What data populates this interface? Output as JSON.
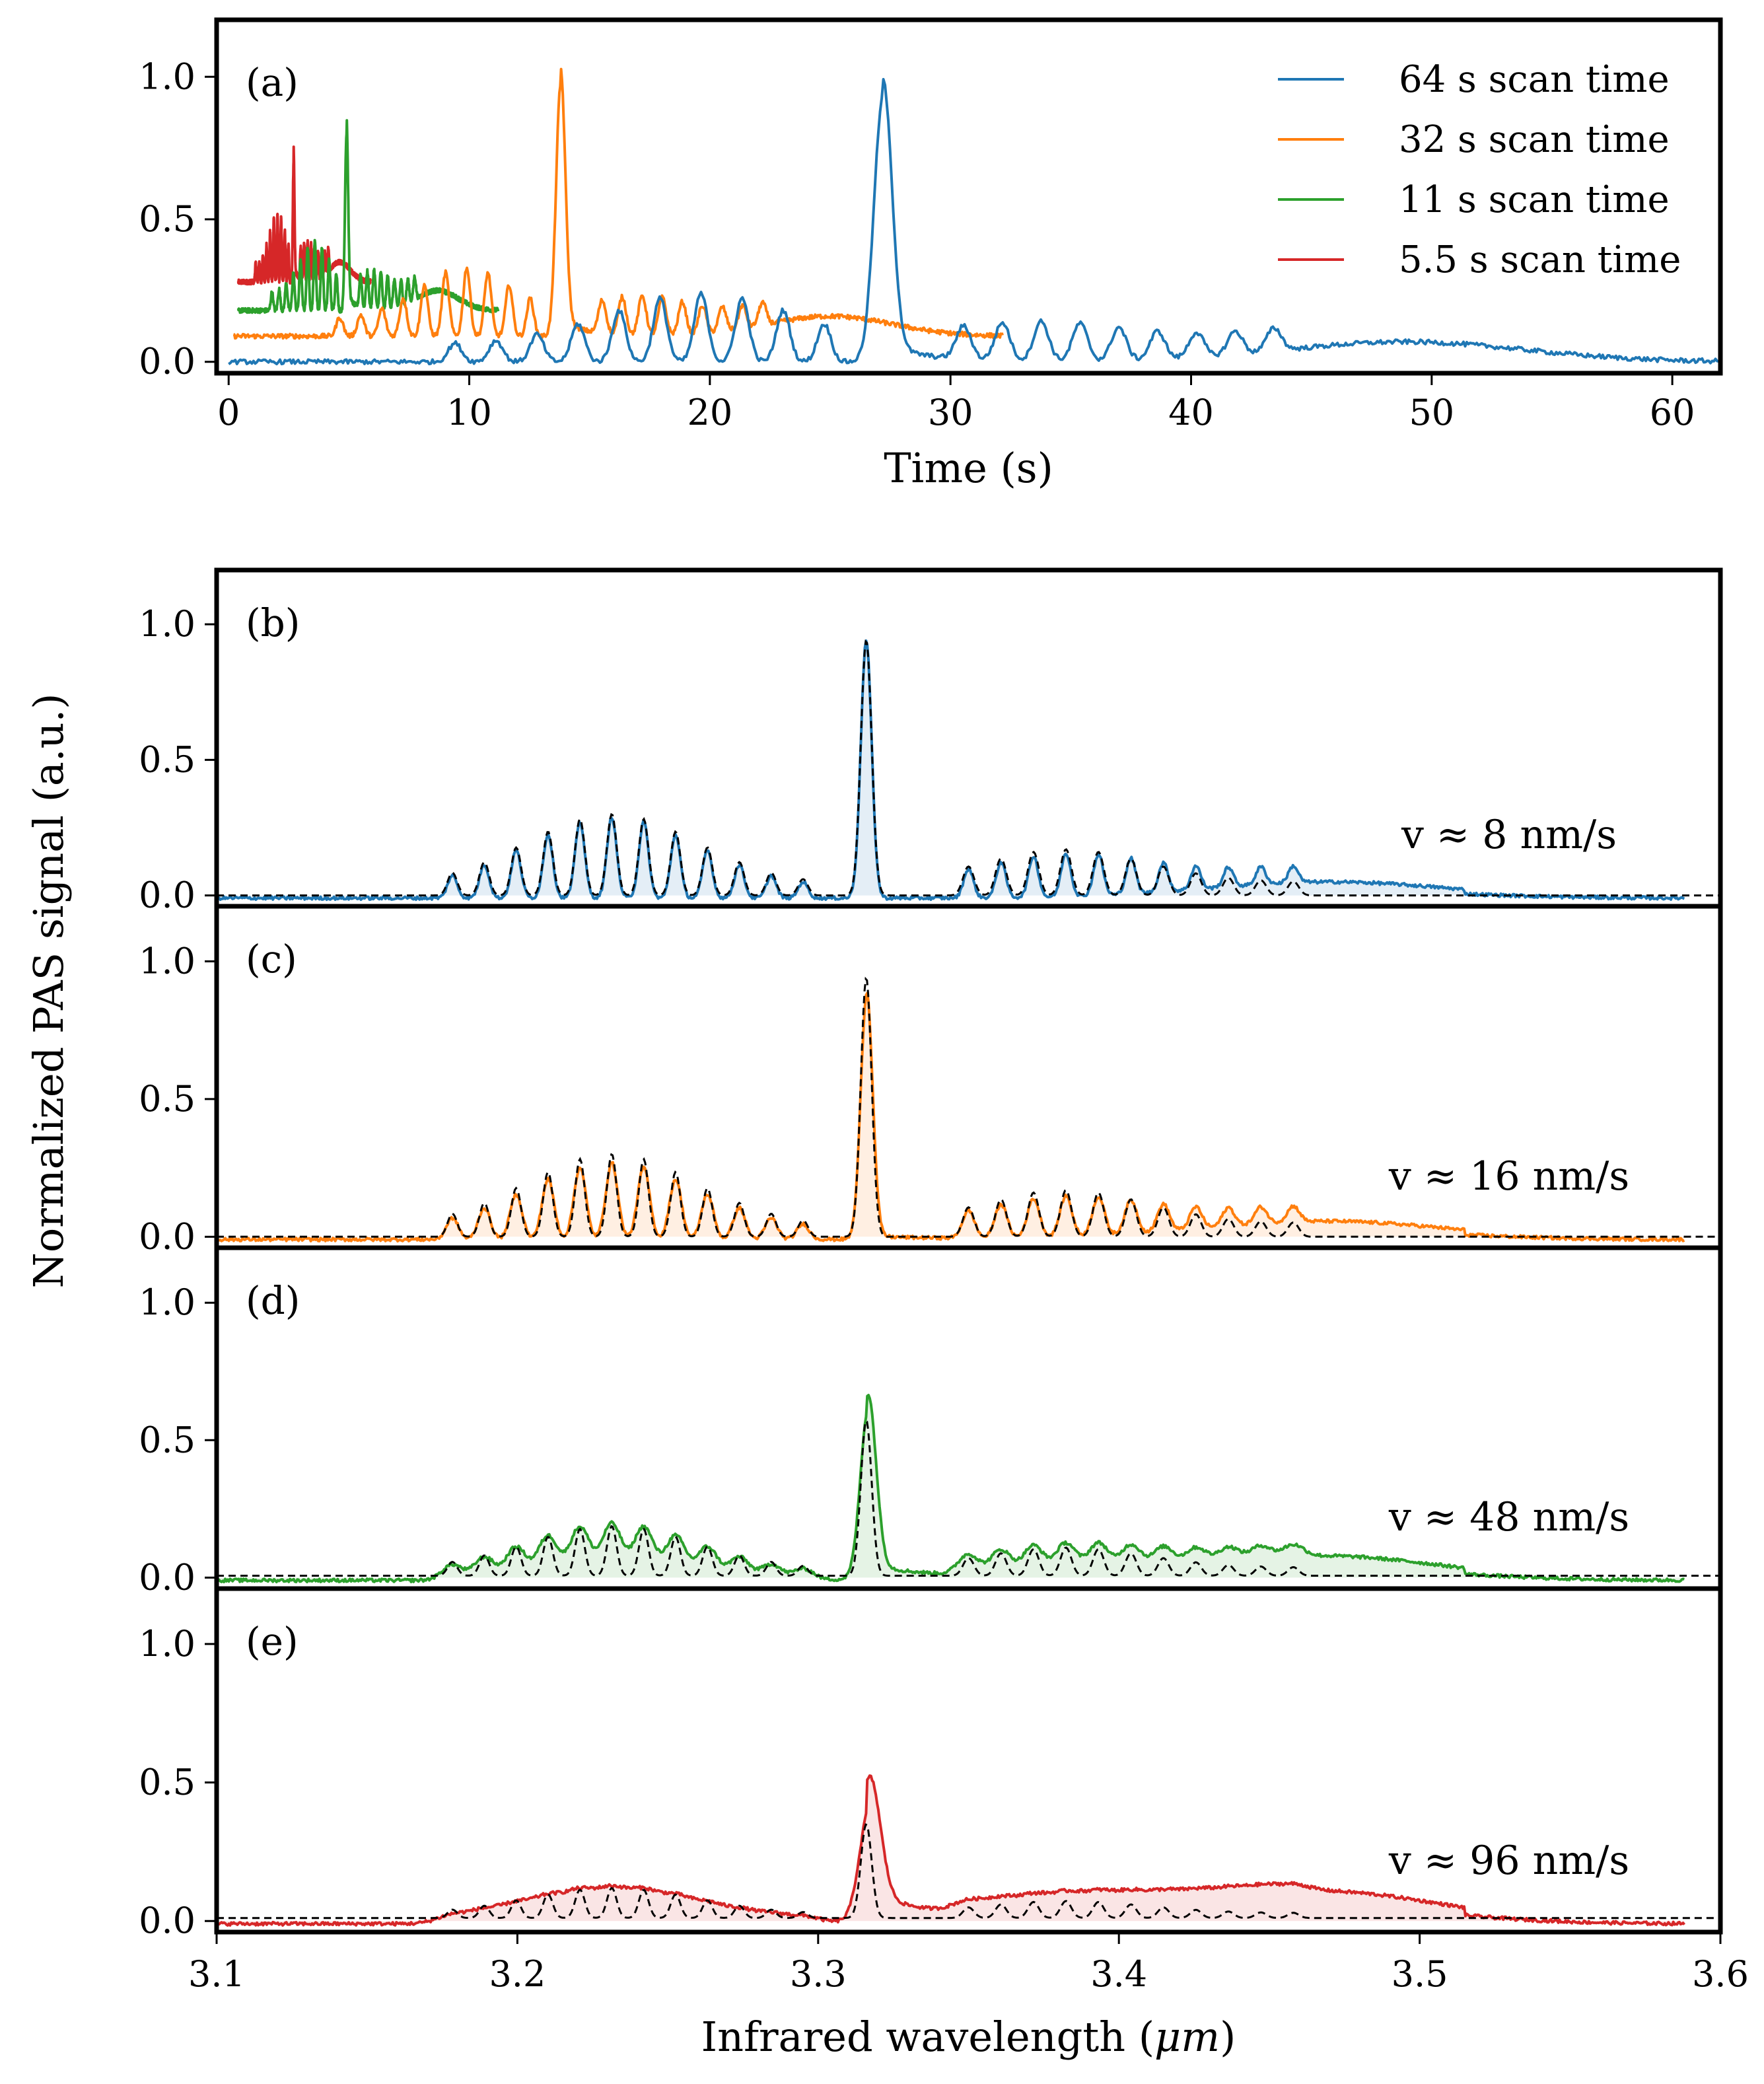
{
  "figure": {
    "ylabel": "Normalized PAS signal (a.u.)"
  },
  "panel_top": {
    "label": "(a)",
    "xlabel": "Time (s)",
    "legend": [
      "64 s scan time",
      "32 s scan time",
      "11 s scan time",
      "5.5 s scan time"
    ]
  },
  "panels_bottom": {
    "xlabel_text": "Infrared wavelength (",
    "xlabel_unit": "μm",
    "xlabel_close": ")",
    "labels": [
      "(b)",
      "(c)",
      "(d)",
      "(e)"
    ],
    "speeds": [
      "v ≈ 8 nm/s",
      "v ≈ 16 nm/s",
      "v ≈ 48 nm/s",
      "v ≈ 96 nm/s"
    ]
  },
  "chart_data": [
    {
      "type": "line",
      "panel": "a",
      "xlabel": "Time (s)",
      "ylabel": "Normalized PAS signal (a.u.)",
      "xlim": [
        -0.5,
        62
      ],
      "ylim": [
        -0.04,
        1.2
      ],
      "xticks": [
        0,
        10,
        20,
        30,
        40,
        50,
        60
      ],
      "yticks": [
        0.0,
        0.5,
        1.0
      ],
      "xtick_labels": [
        "0",
        "10",
        "20",
        "30",
        "40",
        "50",
        "60"
      ],
      "ytick_labels": [
        "0.0",
        "0.5",
        "1.0"
      ],
      "legend_position": "top-right",
      "series": [
        {
          "name": "64 s scan time",
          "color": "#1f77b4",
          "x_range": [
            0,
            62
          ],
          "peak_x": 27.2,
          "peak_y": 0.95,
          "baseline": 0.0
        },
        {
          "name": "32 s scan time",
          "color": "#ff7f0e",
          "x_range": [
            0.2,
            32.2
          ],
          "peak_x": 13.8,
          "peak_y": 0.99,
          "baseline": 0.09
        },
        {
          "name": "11 s scan time",
          "color": "#2ca02c",
          "x_range": [
            0.4,
            11.2
          ],
          "peak_x": 4.9,
          "peak_y": 0.82,
          "baseline": 0.18
        },
        {
          "name": "5.5 s scan time",
          "color": "#d62728",
          "x_range": [
            0.4,
            5.9
          ],
          "peak_x": 2.7,
          "peak_y": 0.72,
          "baseline": 0.28
        }
      ]
    },
    {
      "type": "line",
      "panel": "b-e",
      "xlabel": "Infrared wavelength (μm)",
      "xlim": [
        3.1,
        3.6
      ],
      "ylim": [
        -0.04,
        1.2
      ],
      "xticks": [
        3.1,
        3.2,
        3.3,
        3.4,
        3.5,
        3.6
      ],
      "xtick_labels": [
        "3.1",
        "3.2",
        "3.3",
        "3.4",
        "3.5",
        "3.6"
      ],
      "yticks": [
        0.0,
        0.5,
        1.0
      ],
      "ytick_labels": [
        "0.0",
        "0.5",
        "1.0"
      ],
      "reference_line": {
        "style": "dashed",
        "color": "#000000",
        "main_peak_x": 3.316
      },
      "panels": [
        {
          "label": "(b)",
          "speed": "v ≈ 8 nm/s",
          "color": "#1f77b4",
          "peak_x": 3.316,
          "peak_y": 0.95
        },
        {
          "label": "(c)",
          "speed": "v ≈ 16 nm/s",
          "color": "#ff7f0e",
          "peak_x": 3.316,
          "peak_y": 0.89
        },
        {
          "label": "(d)",
          "speed": "v ≈ 48 nm/s",
          "color": "#2ca02c",
          "peak_x": 3.317,
          "peak_y": 0.62
        },
        {
          "label": "(e)",
          "speed": "v ≈ 96 nm/s",
          "color": "#d62728",
          "peak_x": 3.318,
          "peak_y": 0.42
        }
      ]
    }
  ]
}
